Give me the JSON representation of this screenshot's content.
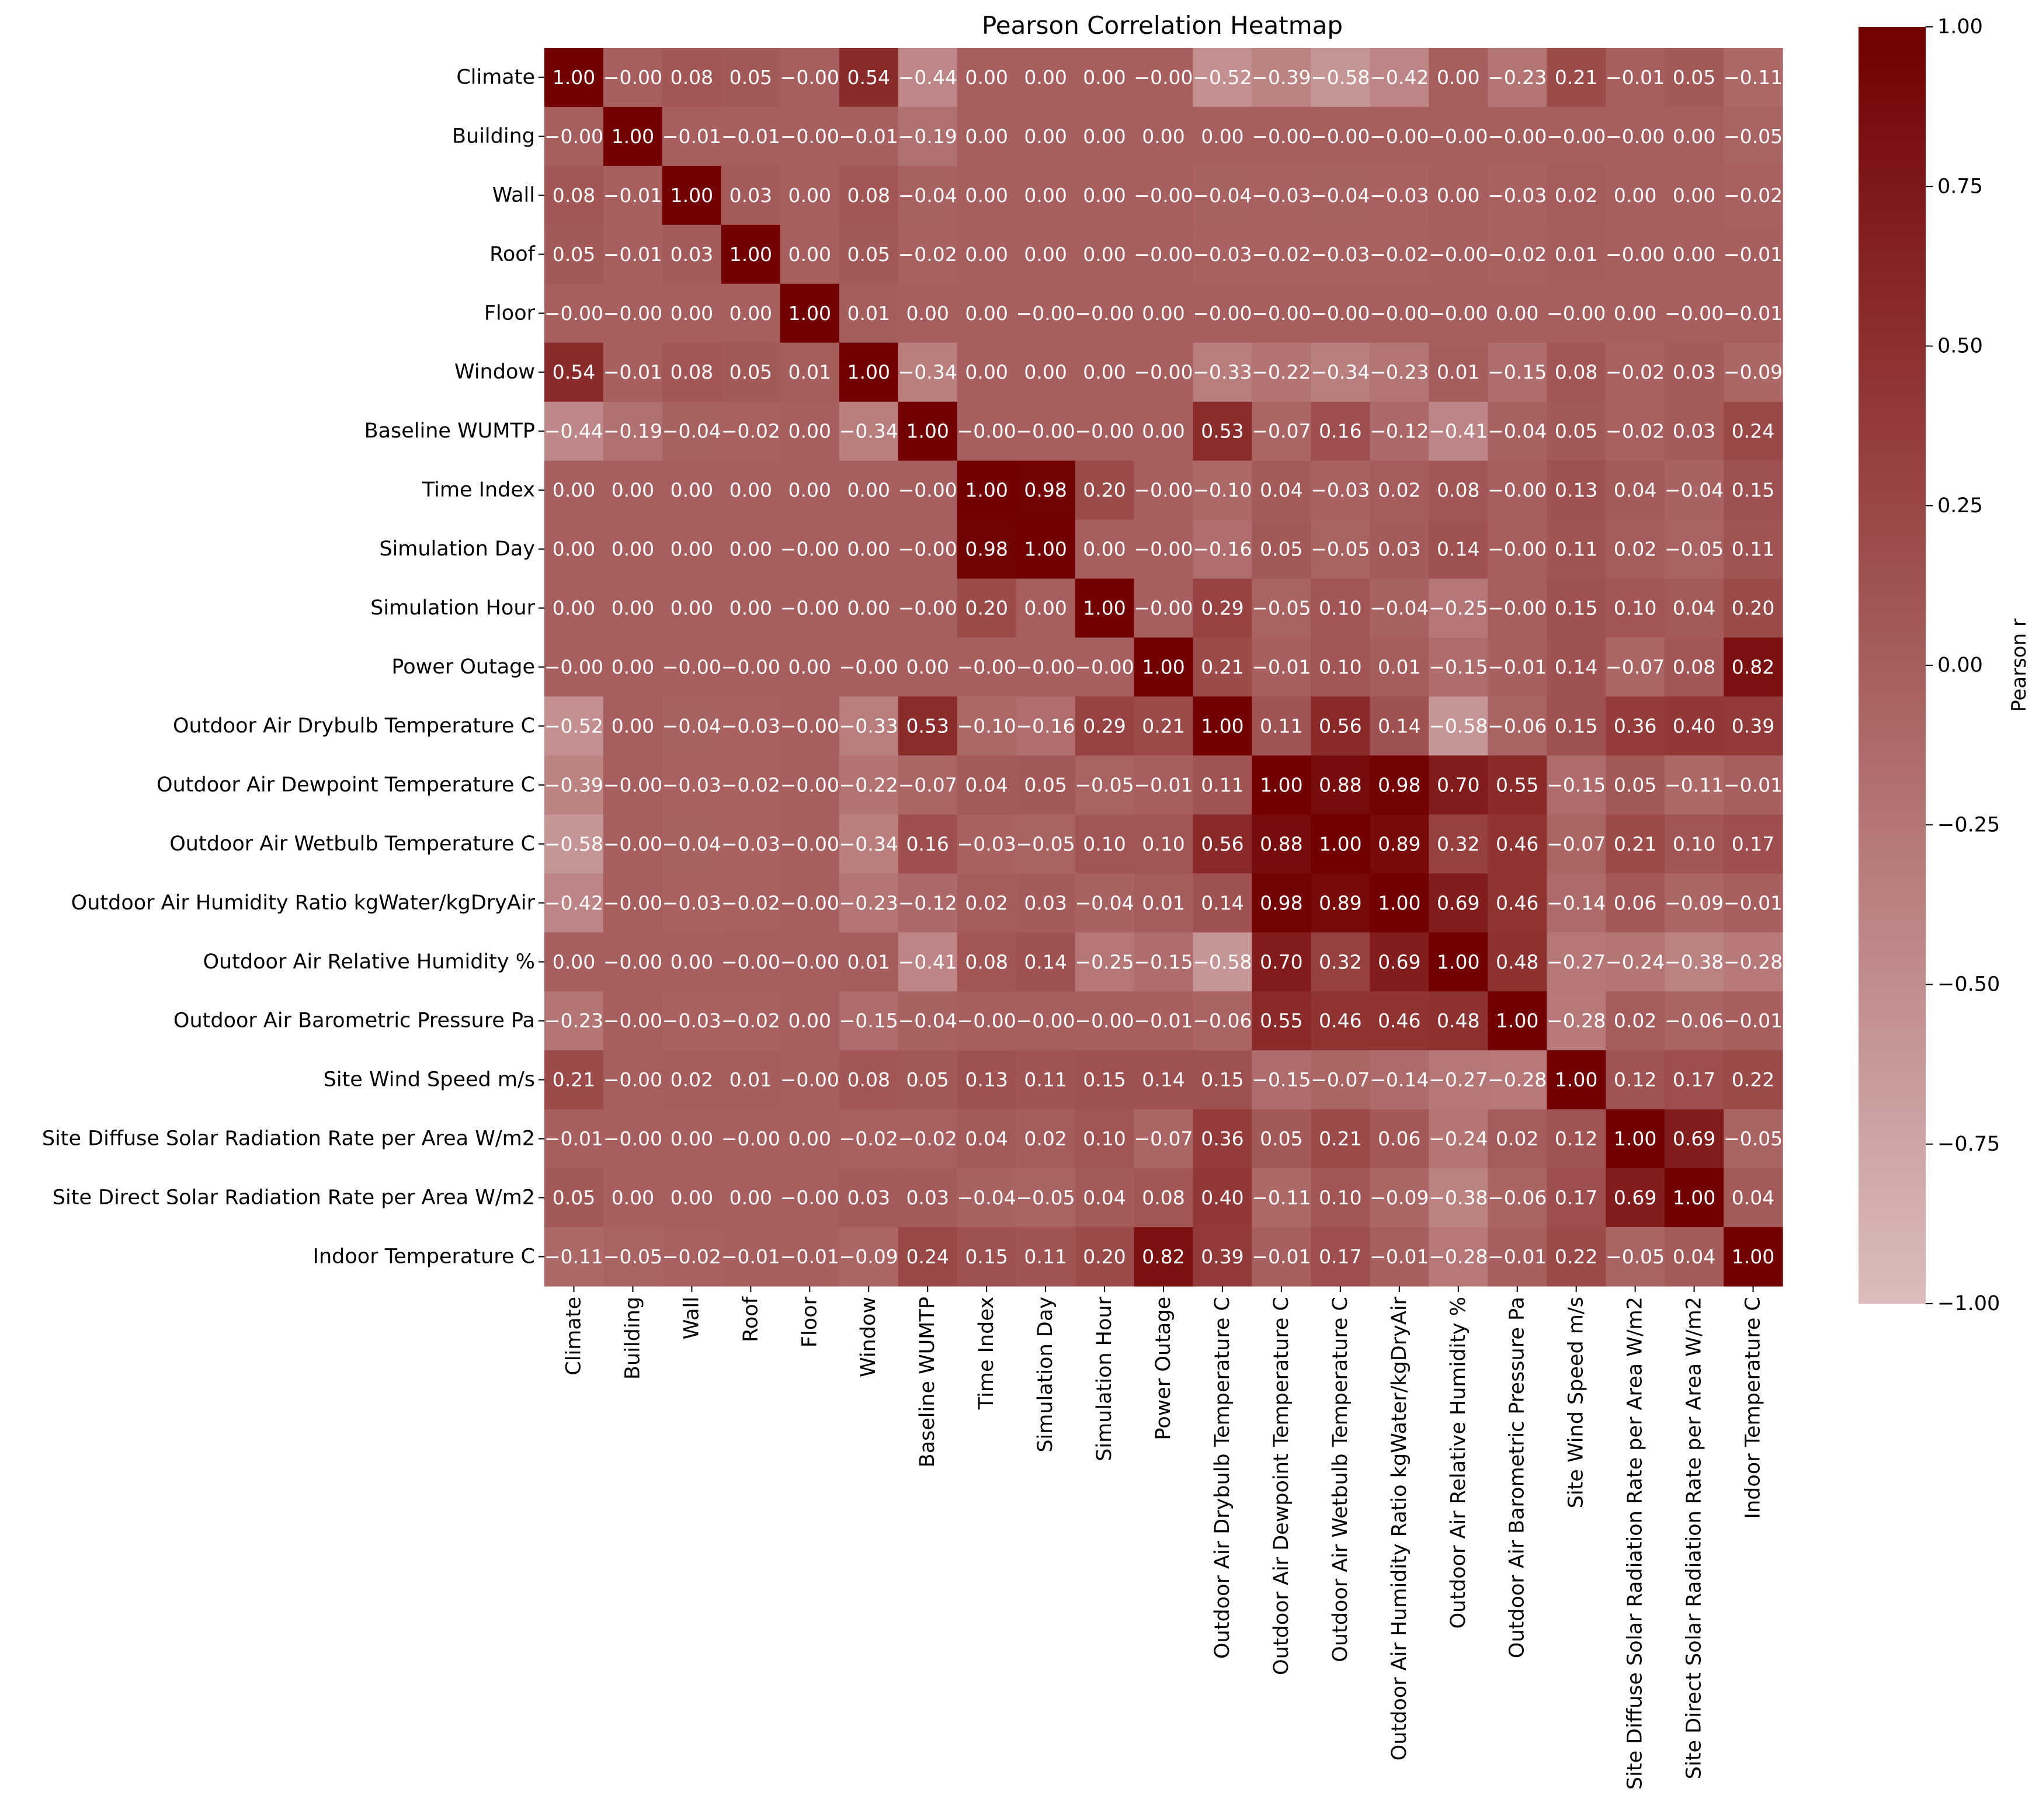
{
  "chart_data": {
    "type": "heatmap",
    "title": "Pearson Correlation Heatmap",
    "labels": [
      "Climate",
      "Building",
      "Wall",
      "Roof",
      "Floor",
      "Window",
      "Baseline WUMTP",
      "Time Index",
      "Simulation Day",
      "Simulation Hour",
      "Power Outage",
      "Outdoor Air Drybulb Temperature C",
      "Outdoor Air Dewpoint Temperature C",
      "Outdoor Air Wetbulb Temperature C",
      "Outdoor Air Humidity Ratio kgWater/kgDryAir",
      "Outdoor Air Relative Humidity %",
      "Outdoor Air Barometric Pressure Pa",
      "Site Wind Speed m/s",
      "Site Diffuse Solar Radiation Rate per Area W/m2",
      "Site Direct Solar Radiation Rate per Area W/m2",
      "Indoor Temperature C"
    ],
    "cells": [
      [
        "1.00",
        "−0.00",
        "0.08",
        "0.05",
        "−0.00",
        "0.54",
        "−0.44",
        "0.00",
        "0.00",
        "0.00",
        "−0.00",
        "−0.52",
        "−0.39",
        "−0.58",
        "−0.42",
        "0.00",
        "−0.23",
        "0.21",
        "−0.01",
        "0.05",
        "−0.11"
      ],
      [
        "−0.00",
        "1.00",
        "−0.01",
        "−0.01",
        "−0.00",
        "−0.01",
        "−0.19",
        "0.00",
        "0.00",
        "0.00",
        "0.00",
        "0.00",
        "−0.00",
        "−0.00",
        "−0.00",
        "−0.00",
        "−0.00",
        "−0.00",
        "−0.00",
        "0.00",
        "−0.05"
      ],
      [
        "0.08",
        "−0.01",
        "1.00",
        "0.03",
        "0.00",
        "0.08",
        "−0.04",
        "0.00",
        "0.00",
        "0.00",
        "−0.00",
        "−0.04",
        "−0.03",
        "−0.04",
        "−0.03",
        "0.00",
        "−0.03",
        "0.02",
        "0.00",
        "0.00",
        "−0.02"
      ],
      [
        "0.05",
        "−0.01",
        "0.03",
        "1.00",
        "0.00",
        "0.05",
        "−0.02",
        "0.00",
        "0.00",
        "0.00",
        "−0.00",
        "−0.03",
        "−0.02",
        "−0.03",
        "−0.02",
        "−0.00",
        "−0.02",
        "0.01",
        "−0.00",
        "0.00",
        "−0.01"
      ],
      [
        "−0.00",
        "−0.00",
        "0.00",
        "0.00",
        "1.00",
        "0.01",
        "0.00",
        "0.00",
        "−0.00",
        "−0.00",
        "0.00",
        "−0.00",
        "−0.00",
        "−0.00",
        "−0.00",
        "−0.00",
        "0.00",
        "−0.00",
        "0.00",
        "−0.00",
        "−0.01"
      ],
      [
        "0.54",
        "−0.01",
        "0.08",
        "0.05",
        "0.01",
        "1.00",
        "−0.34",
        "0.00",
        "0.00",
        "0.00",
        "−0.00",
        "−0.33",
        "−0.22",
        "−0.34",
        "−0.23",
        "0.01",
        "−0.15",
        "0.08",
        "−0.02",
        "0.03",
        "−0.09"
      ],
      [
        "−0.44",
        "−0.19",
        "−0.04",
        "−0.02",
        "0.00",
        "−0.34",
        "1.00",
        "−0.00",
        "−0.00",
        "−0.00",
        "0.00",
        "0.53",
        "−0.07",
        "0.16",
        "−0.12",
        "−0.41",
        "−0.04",
        "0.05",
        "−0.02",
        "0.03",
        "0.24"
      ],
      [
        "0.00",
        "0.00",
        "0.00",
        "0.00",
        "0.00",
        "0.00",
        "−0.00",
        "1.00",
        "0.98",
        "0.20",
        "−0.00",
        "−0.10",
        "0.04",
        "−0.03",
        "0.02",
        "0.08",
        "−0.00",
        "0.13",
        "0.04",
        "−0.04",
        "0.15"
      ],
      [
        "0.00",
        "0.00",
        "0.00",
        "0.00",
        "−0.00",
        "0.00",
        "−0.00",
        "0.98",
        "1.00",
        "0.00",
        "−0.00",
        "−0.16",
        "0.05",
        "−0.05",
        "0.03",
        "0.14",
        "−0.00",
        "0.11",
        "0.02",
        "−0.05",
        "0.11"
      ],
      [
        "0.00",
        "0.00",
        "0.00",
        "0.00",
        "−0.00",
        "0.00",
        "−0.00",
        "0.20",
        "0.00",
        "1.00",
        "−0.00",
        "0.29",
        "−0.05",
        "0.10",
        "−0.04",
        "−0.25",
        "−0.00",
        "0.15",
        "0.10",
        "0.04",
        "0.20"
      ],
      [
        "−0.00",
        "0.00",
        "−0.00",
        "−0.00",
        "0.00",
        "−0.00",
        "0.00",
        "−0.00",
        "−0.00",
        "−0.00",
        "1.00",
        "0.21",
        "−0.01",
        "0.10",
        "0.01",
        "−0.15",
        "−0.01",
        "0.14",
        "−0.07",
        "0.08",
        "0.82"
      ],
      [
        "−0.52",
        "0.00",
        "−0.04",
        "−0.03",
        "−0.00",
        "−0.33",
        "0.53",
        "−0.10",
        "−0.16",
        "0.29",
        "0.21",
        "1.00",
        "0.11",
        "0.56",
        "0.14",
        "−0.58",
        "−0.06",
        "0.15",
        "0.36",
        "0.40",
        "0.39"
      ],
      [
        "−0.39",
        "−0.00",
        "−0.03",
        "−0.02",
        "−0.00",
        "−0.22",
        "−0.07",
        "0.04",
        "0.05",
        "−0.05",
        "−0.01",
        "0.11",
        "1.00",
        "0.88",
        "0.98",
        "0.70",
        "0.55",
        "−0.15",
        "0.05",
        "−0.11",
        "−0.01"
      ],
      [
        "−0.58",
        "−0.00",
        "−0.04",
        "−0.03",
        "−0.00",
        "−0.34",
        "0.16",
        "−0.03",
        "−0.05",
        "0.10",
        "0.10",
        "0.56",
        "0.88",
        "1.00",
        "0.89",
        "0.32",
        "0.46",
        "−0.07",
        "0.21",
        "0.10",
        "0.17"
      ],
      [
        "−0.42",
        "−0.00",
        "−0.03",
        "−0.02",
        "−0.00",
        "−0.23",
        "−0.12",
        "0.02",
        "0.03",
        "−0.04",
        "0.01",
        "0.14",
        "0.98",
        "0.89",
        "1.00",
        "0.69",
        "0.46",
        "−0.14",
        "0.06",
        "−0.09",
        "−0.01"
      ],
      [
        "0.00",
        "−0.00",
        "0.00",
        "−0.00",
        "−0.00",
        "0.01",
        "−0.41",
        "0.08",
        "0.14",
        "−0.25",
        "−0.15",
        "−0.58",
        "0.70",
        "0.32",
        "0.69",
        "1.00",
        "0.48",
        "−0.27",
        "−0.24",
        "−0.38",
        "−0.28"
      ],
      [
        "−0.23",
        "−0.00",
        "−0.03",
        "−0.02",
        "0.00",
        "−0.15",
        "−0.04",
        "−0.00",
        "−0.00",
        "−0.00",
        "−0.01",
        "−0.06",
        "0.55",
        "0.46",
        "0.46",
        "0.48",
        "1.00",
        "−0.28",
        "0.02",
        "−0.06",
        "−0.01"
      ],
      [
        "0.21",
        "−0.00",
        "0.02",
        "0.01",
        "−0.00",
        "0.08",
        "0.05",
        "0.13",
        "0.11",
        "0.15",
        "0.14",
        "0.15",
        "−0.15",
        "−0.07",
        "−0.14",
        "−0.27",
        "−0.28",
        "1.00",
        "0.12",
        "0.17",
        "0.22"
      ],
      [
        "−0.01",
        "−0.00",
        "0.00",
        "−0.00",
        "0.00",
        "−0.02",
        "−0.02",
        "0.04",
        "0.02",
        "0.10",
        "−0.07",
        "0.36",
        "0.05",
        "0.21",
        "0.06",
        "−0.24",
        "0.02",
        "0.12",
        "1.00",
        "0.69",
        "−0.05"
      ],
      [
        "0.05",
        "0.00",
        "0.00",
        "0.00",
        "−0.00",
        "0.03",
        "0.03",
        "−0.04",
        "−0.05",
        "0.04",
        "0.08",
        "0.40",
        "−0.11",
        "0.10",
        "−0.09",
        "−0.38",
        "−0.06",
        "0.17",
        "0.69",
        "1.00",
        "0.04"
      ],
      [
        "−0.11",
        "−0.05",
        "−0.02",
        "−0.01",
        "−0.01",
        "−0.09",
        "0.24",
        "0.15",
        "0.11",
        "0.20",
        "0.82",
        "0.39",
        "−0.01",
        "0.17",
        "−0.01",
        "−0.28",
        "−0.01",
        "0.22",
        "−0.05",
        "0.04",
        "1.00"
      ]
    ],
    "colorbar": {
      "label": "Pearson r",
      "range": [
        -1,
        1
      ],
      "ticks": [
        "−1.00",
        "−0.75",
        "−0.50",
        "−0.25",
        "0.00",
        "0.25",
        "0.50",
        "0.75",
        "1.00"
      ],
      "colors": {
        "low": "#dcbcbc",
        "high": "#720000"
      }
    },
    "legend": "right",
    "grid": false
  }
}
